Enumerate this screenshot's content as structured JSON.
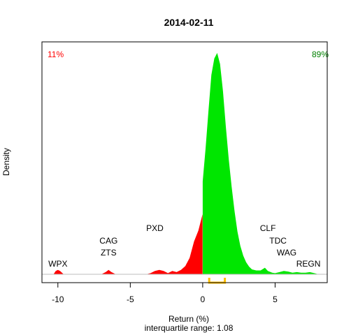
{
  "chart_data": {
    "type": "area",
    "title": "2014-02-11",
    "xlabel": "Return (%)",
    "ylabel": "Density",
    "subtitle": "interquartile range: 1.08",
    "xlim": [
      -11.1,
      8.6
    ],
    "ylim": [
      0,
      0.41
    ],
    "x_ticks": [
      -10,
      -5,
      0,
      5
    ],
    "tick_labels": [
      "-10",
      "-5",
      "0",
      "5"
    ],
    "negative_share": "11%",
    "positive_share": "89%",
    "colors": {
      "negative": "#ff0000",
      "positive": "#00e600",
      "iqr": "#ffc000",
      "baseline": "#bebebe",
      "frame": "#000000"
    },
    "interquartile_range": {
      "value": 1.08,
      "lower": 0.45,
      "upper": 1.53
    },
    "density": {
      "x": [
        -10.6,
        -10.3,
        -10.15,
        -10.0,
        -9.85,
        -9.6,
        -7.0,
        -6.7,
        -6.5,
        -6.3,
        -6.0,
        -3.9,
        -3.6,
        -3.3,
        -3.0,
        -2.7,
        -2.4,
        -2.1,
        -1.8,
        -1.5,
        -1.2,
        -0.9,
        -0.6,
        -0.3,
        -0.01,
        0.0,
        0.2,
        0.4,
        0.6,
        0.8,
        1.0,
        1.2,
        1.4,
        1.6,
        1.8,
        2.0,
        2.2,
        2.4,
        2.6,
        2.8,
        3.0,
        3.2,
        3.4,
        3.7,
        4.0,
        4.3,
        4.5,
        4.8,
        5.0,
        5.3,
        5.6,
        5.9,
        6.2,
        6.5,
        6.8,
        7.1,
        7.4,
        7.7,
        8.0
      ],
      "y": [
        0,
        0,
        0.006,
        0.008,
        0.006,
        0,
        0,
        0.004,
        0.008,
        0.004,
        0,
        0,
        0.002,
        0.006,
        0.008,
        0.006,
        0.002,
        0.006,
        0.004,
        0.008,
        0.015,
        0.03,
        0.06,
        0.08,
        0.11,
        0.17,
        0.23,
        0.3,
        0.365,
        0.395,
        0.405,
        0.385,
        0.335,
        0.27,
        0.21,
        0.16,
        0.115,
        0.078,
        0.052,
        0.034,
        0.022,
        0.014,
        0.009,
        0.007,
        0.007,
        0.012,
        0.006,
        0.003,
        0.002,
        0.004,
        0.006,
        0.005,
        0.003,
        0.004,
        0.003,
        0.003,
        0.004,
        0.002,
        0
      ]
    },
    "labels": [
      {
        "text": "WPX",
        "x": -10.0,
        "level": 1
      },
      {
        "text": "CAG",
        "x": -6.5,
        "level": 3
      },
      {
        "text": "ZTS",
        "x": -6.5,
        "level": 2
      },
      {
        "text": "PXD",
        "x": -3.3,
        "level": 4
      },
      {
        "text": "CLF",
        "x": 4.5,
        "level": 4
      },
      {
        "text": "TDC",
        "x": 5.2,
        "level": 3
      },
      {
        "text": "WAG",
        "x": 5.8,
        "level": 2
      },
      {
        "text": "REGN",
        "x": 7.3,
        "level": 1
      }
    ]
  }
}
